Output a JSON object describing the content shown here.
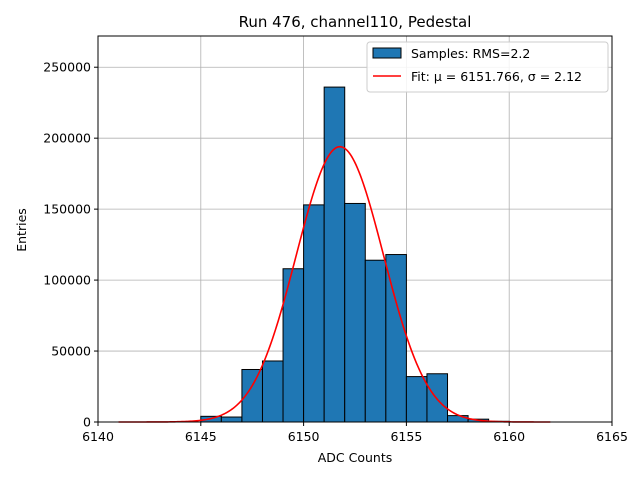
{
  "chart_data": {
    "type": "bar",
    "title": "Run 476, channel110, Pedestal",
    "xlabel": "ADC Counts",
    "ylabel": "Entries",
    "xlim": [
      6140,
      6165
    ],
    "ylim": [
      0,
      272000
    ],
    "xticks": [
      6140,
      6145,
      6150,
      6155,
      6160,
      6165
    ],
    "yticks": [
      0,
      50000,
      100000,
      150000,
      200000,
      250000
    ],
    "grid": true,
    "legend_position": "top-right",
    "bins": [
      {
        "x": 6145,
        "value": 4000
      },
      {
        "x": 6146,
        "value": 3500
      },
      {
        "x": 6147,
        "value": 37000
      },
      {
        "x": 6148,
        "value": 43000
      },
      {
        "x": 6149,
        "value": 108000
      },
      {
        "x": 6150,
        "value": 153000
      },
      {
        "x": 6151,
        "value": 236000
      },
      {
        "x": 6152,
        "value": 154000
      },
      {
        "x": 6153,
        "value": 114000
      },
      {
        "x": 6154,
        "value": 118000
      },
      {
        "x": 6155,
        "value": 32000
      },
      {
        "x": 6156,
        "value": 34000
      },
      {
        "x": 6157,
        "value": 4500
      },
      {
        "x": 6158,
        "value": 2000
      },
      {
        "x": 6159,
        "value": 500
      }
    ],
    "bin_width": 1,
    "fit": {
      "type": "gaussian",
      "mu": 6151.766,
      "sigma": 2.12,
      "amplitude": 194000,
      "x_range": [
        6141,
        6162
      ]
    },
    "series": [
      {
        "name": "Samples: RMS=2.2",
        "kind": "histogram",
        "color": "#1f77b4"
      },
      {
        "name": "Fit: μ = 6151.766, σ = 2.12",
        "kind": "line",
        "color": "#ff0000"
      }
    ]
  }
}
